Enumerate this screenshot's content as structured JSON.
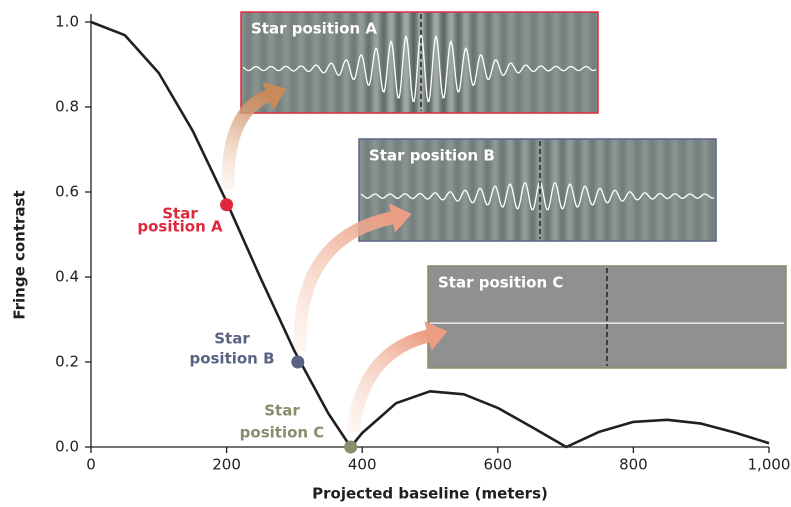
{
  "chart_data": {
    "type": "line",
    "xlabel": "Projected baseline (meters)",
    "ylabel": "Fringe contrast",
    "x": [
      0,
      50,
      100,
      150,
      200,
      250,
      300,
      350,
      383,
      400,
      450,
      500,
      550,
      600,
      650,
      701,
      750,
      800,
      850,
      900,
      950,
      1000
    ],
    "series": [
      {
        "color": "#231f20",
        "values": [
          1.0,
          0.969,
          0.88,
          0.744,
          0.577,
          0.398,
          0.226,
          0.079,
          0.0,
          0.033,
          0.103,
          0.131,
          0.124,
          0.092,
          0.047,
          0.0,
          0.036,
          0.059,
          0.064,
          0.055,
          0.034,
          0.009
        ]
      }
    ],
    "xlim": [
      0,
      1000
    ],
    "xticks": [
      0,
      200,
      400,
      600,
      800,
      {
        "value": 1000,
        "label": "1,000"
      }
    ],
    "ylim": [
      0,
      1.0
    ],
    "yticks": [
      {
        "value": 0,
        "label": "0.0"
      },
      0.2,
      0.4,
      0.6,
      0.8,
      {
        "value": 1.0,
        "label": "1.0"
      }
    ],
    "points": [
      {
        "label": [
          "Star",
          "position A"
        ],
        "x": 200,
        "y": 0.57,
        "color": "#e0283c"
      },
      {
        "label": [
          "Star",
          "position B"
        ],
        "x": 305,
        "y": 0.2,
        "color": "#5b6383"
      },
      {
        "label": [
          "Star",
          "position C"
        ],
        "x": 383,
        "y": 0.0,
        "color": "#8b8c6b"
      }
    ],
    "panels": [
      {
        "title": "Star position A",
        "color": "#e0283c"
      },
      {
        "title": "Star position B",
        "color": "#5b6383"
      },
      {
        "title": "Star position C",
        "color": "#8b8c6b"
      }
    ]
  }
}
